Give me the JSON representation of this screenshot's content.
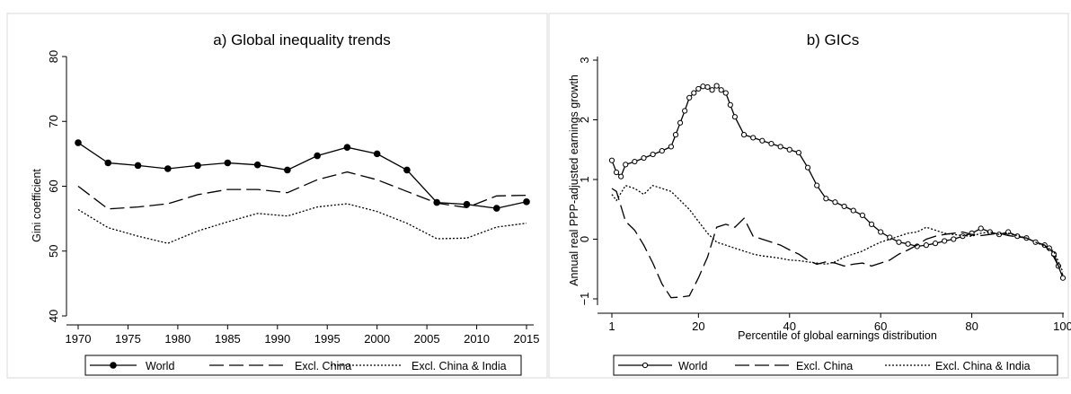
{
  "chart_data": [
    {
      "type": "line",
      "title": "a) Global inequality trends",
      "xlabel": "",
      "ylabel": "Gini coefficient",
      "xlim": [
        1970,
        2015
      ],
      "ylim": [
        40,
        80
      ],
      "xticks": [
        "1970",
        "1975",
        "1980",
        "1985",
        "1990",
        "1995",
        "2000",
        "2005",
        "2010",
        "2015"
      ],
      "yticks": [
        "40",
        "50",
        "60",
        "70",
        "80"
      ],
      "grid": false,
      "legend_position": "bottom",
      "x": [
        1970,
        1973,
        1976,
        1979,
        1982,
        1985,
        1988,
        1991,
        1994,
        1997,
        2000,
        2003,
        2006,
        2009,
        2012,
        2015
      ],
      "series": [
        {
          "name": "World",
          "style": "solid-dots",
          "values": [
            66.7,
            63.6,
            63.2,
            62.7,
            63.2,
            63.6,
            63.3,
            62.5,
            64.7,
            66.0,
            65.0,
            62.5,
            57.5,
            57.2,
            56.6,
            57.6
          ]
        },
        {
          "name": "Excl. China",
          "style": "long-dash",
          "values": [
            60.0,
            56.5,
            56.8,
            57.3,
            58.7,
            59.5,
            59.5,
            59.0,
            61.0,
            62.2,
            61.0,
            59.2,
            57.4,
            56.7,
            58.5,
            58.6
          ]
        },
        {
          "name": "Excl. China & India",
          "style": "dotted",
          "values": [
            56.4,
            53.6,
            52.3,
            51.2,
            53.1,
            54.5,
            55.8,
            55.4,
            56.8,
            57.3,
            56.1,
            54.3,
            51.9,
            52.0,
            53.7,
            54.3
          ]
        }
      ]
    },
    {
      "type": "line",
      "title": "b) GICs",
      "xlabel": "Percentile of global earnings distribution",
      "ylabel": "Annual real PPP-adjusted earnings growth",
      "xlim": [
        1,
        100
      ],
      "ylim": [
        -1,
        3
      ],
      "xticks": [
        "1",
        "20",
        "40",
        "60",
        "80",
        "100"
      ],
      "yticks": [
        "−1",
        "0",
        "1",
        "2",
        "3"
      ],
      "grid": false,
      "legend_position": "bottom",
      "series": [
        {
          "name": "World",
          "style": "solid-hollow-markers",
          "x": [
            1,
            2,
            3,
            4,
            6,
            8,
            10,
            12,
            14,
            15,
            16,
            17,
            18,
            19,
            20,
            21,
            22,
            23,
            24,
            25,
            26,
            27,
            28,
            30,
            32,
            34,
            36,
            38,
            40,
            42,
            44,
            46,
            48,
            50,
            52,
            54,
            56,
            58,
            60,
            62,
            64,
            66,
            68,
            70,
            72,
            74,
            76,
            78,
            80,
            82,
            84,
            86,
            88,
            90,
            92,
            94,
            96,
            97,
            98,
            99,
            100
          ],
          "values": [
            1.32,
            1.12,
            1.05,
            1.25,
            1.3,
            1.36,
            1.42,
            1.48,
            1.55,
            1.75,
            1.95,
            2.15,
            2.37,
            2.45,
            2.52,
            2.56,
            2.55,
            2.5,
            2.57,
            2.5,
            2.45,
            2.25,
            2.05,
            1.75,
            1.7,
            1.65,
            1.6,
            1.55,
            1.5,
            1.45,
            1.2,
            0.9,
            0.68,
            0.62,
            0.55,
            0.48,
            0.4,
            0.25,
            0.12,
            0.03,
            -0.05,
            -0.08,
            -0.12,
            -0.1,
            -0.07,
            -0.03,
            0.0,
            0.05,
            0.1,
            0.18,
            0.12,
            0.08,
            0.12,
            0.05,
            0.02,
            -0.05,
            -0.1,
            -0.15,
            -0.25,
            -0.45,
            -0.65
          ]
        },
        {
          "name": "Excl. China",
          "style": "long-dash",
          "x": [
            1,
            2,
            4,
            6,
            8,
            10,
            12,
            14,
            16,
            18,
            20,
            22,
            24,
            26,
            28,
            30,
            32,
            34,
            36,
            38,
            40,
            42,
            44,
            46,
            48,
            50,
            52,
            54,
            56,
            58,
            60,
            62,
            64,
            66,
            68,
            70,
            72,
            74,
            76,
            78,
            80,
            82,
            84,
            86,
            88,
            90,
            92,
            94,
            96,
            98,
            100
          ],
          "values": [
            0.85,
            0.8,
            0.3,
            0.15,
            -0.1,
            -0.4,
            -0.75,
            -0.98,
            -0.97,
            -0.95,
            -0.65,
            -0.3,
            0.2,
            0.25,
            0.2,
            0.35,
            0.05,
            0.0,
            -0.05,
            -0.1,
            -0.18,
            -0.25,
            -0.35,
            -0.42,
            -0.38,
            -0.4,
            -0.45,
            -0.42,
            -0.4,
            -0.45,
            -0.4,
            -0.35,
            -0.25,
            -0.18,
            -0.1,
            0.0,
            0.05,
            0.08,
            0.1,
            0.12,
            0.08,
            0.06,
            0.08,
            0.1,
            0.06,
            0.04,
            0.02,
            -0.05,
            -0.1,
            -0.3,
            -0.6
          ]
        },
        {
          "name": "Excl. China & India",
          "style": "dotted",
          "x": [
            1,
            2,
            4,
            6,
            8,
            10,
            12,
            14,
            16,
            18,
            20,
            22,
            24,
            26,
            28,
            30,
            32,
            34,
            36,
            38,
            40,
            42,
            44,
            46,
            48,
            50,
            52,
            54,
            56,
            58,
            60,
            62,
            64,
            66,
            68,
            70,
            72,
            74,
            76,
            78,
            80,
            82,
            84,
            86,
            88,
            90,
            92,
            94,
            96,
            98,
            100
          ],
          "values": [
            0.75,
            0.65,
            0.9,
            0.85,
            0.75,
            0.9,
            0.85,
            0.8,
            0.65,
            0.5,
            0.3,
            0.1,
            -0.05,
            -0.1,
            -0.15,
            -0.2,
            -0.25,
            -0.28,
            -0.3,
            -0.32,
            -0.35,
            -0.36,
            -0.38,
            -0.4,
            -0.42,
            -0.38,
            -0.3,
            -0.25,
            -0.2,
            -0.12,
            -0.05,
            0.0,
            0.05,
            0.1,
            0.12,
            0.2,
            0.15,
            0.1,
            0.08,
            0.06,
            0.05,
            0.1,
            0.12,
            0.08,
            0.1,
            0.06,
            0.02,
            -0.05,
            -0.12,
            -0.2,
            -0.55
          ]
        }
      ]
    }
  ]
}
